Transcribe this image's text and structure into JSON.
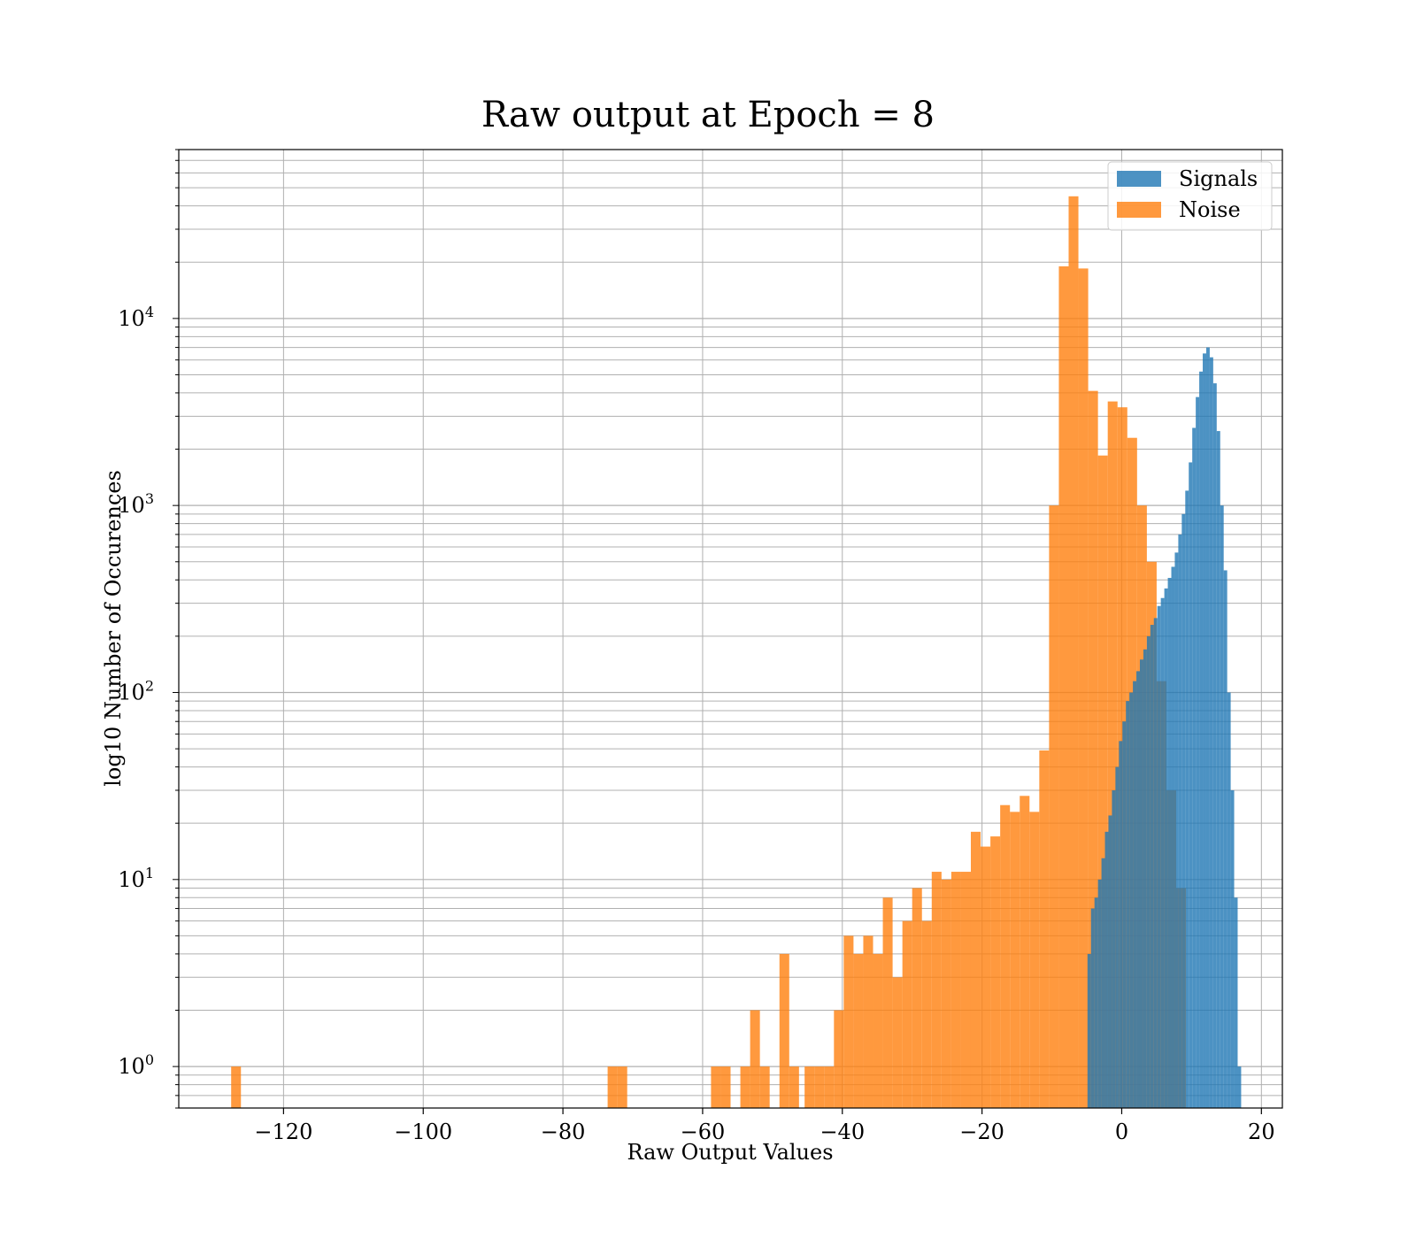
{
  "chart_data": {
    "type": "bar",
    "title": "Raw output at Epoch = 8",
    "xlabel": "Raw Output Values",
    "ylabel": "log10 Number of Occurences",
    "xlim": [
      -135,
      23
    ],
    "ylim": [
      0.6,
      80000
    ],
    "yscale": "log",
    "grid": true,
    "legend_position": "top-right",
    "x_ticks": [
      "−120",
      "−100",
      "−80",
      "−60",
      "−40",
      "−20",
      "0",
      "20"
    ],
    "x_tick_values": [
      -120,
      -100,
      -80,
      -60,
      -40,
      -20,
      0,
      20
    ],
    "y_ticks": [
      {
        "value": 1,
        "base": "10",
        "exp": "0"
      },
      {
        "value": 10,
        "base": "10",
        "exp": "1"
      },
      {
        "value": 100,
        "base": "10",
        "exp": "2"
      },
      {
        "value": 1000,
        "base": "10",
        "exp": "3"
      },
      {
        "value": 10000,
        "base": "10",
        "exp": "4"
      }
    ],
    "series": [
      {
        "name": "Noise",
        "color": "#ff7f0e",
        "bins": [
          [
            -127.5,
            -126.1,
            1
          ],
          [
            -73.6,
            -72.2,
            1
          ],
          [
            -72.2,
            -70.8,
            1
          ],
          [
            -58.8,
            -57.4,
            1
          ],
          [
            -57.4,
            -56.0,
            1
          ],
          [
            -54.6,
            -53.2,
            1
          ],
          [
            -53.2,
            -51.8,
            2
          ],
          [
            -51.8,
            -50.4,
            1
          ],
          [
            -49.0,
            -47.6,
            4
          ],
          [
            -47.6,
            -46.2,
            1
          ],
          [
            -45.4,
            -44.0,
            1
          ],
          [
            -44.0,
            -42.6,
            1
          ],
          [
            -42.6,
            -41.2,
            1
          ],
          [
            -41.2,
            -39.8,
            2
          ],
          [
            -39.8,
            -38.4,
            5
          ],
          [
            -38.4,
            -37.0,
            4
          ],
          [
            -37.0,
            -35.6,
            5
          ],
          [
            -35.6,
            -34.2,
            4
          ],
          [
            -34.2,
            -32.8,
            8
          ],
          [
            -32.8,
            -31.4,
            3
          ],
          [
            -31.4,
            -30.0,
            6
          ],
          [
            -30.0,
            -28.6,
            9
          ],
          [
            -28.6,
            -27.2,
            6
          ],
          [
            -27.2,
            -25.8,
            11
          ],
          [
            -25.8,
            -24.4,
            10
          ],
          [
            -24.4,
            -23.0,
            11
          ],
          [
            -23.0,
            -21.6,
            11
          ],
          [
            -21.6,
            -20.2,
            18
          ],
          [
            -20.2,
            -18.8,
            15
          ],
          [
            -18.8,
            -17.4,
            17
          ],
          [
            -17.4,
            -16.0,
            25
          ],
          [
            -16.0,
            -14.6,
            23
          ],
          [
            -14.6,
            -13.2,
            28
          ],
          [
            -13.2,
            -11.8,
            23
          ],
          [
            -11.8,
            -10.4,
            49
          ],
          [
            -10.4,
            -9.0,
            1000
          ],
          [
            -9.0,
            -7.6,
            19000
          ],
          [
            -7.6,
            -6.2,
            45000
          ],
          [
            -6.2,
            -4.8,
            18500
          ],
          [
            -4.8,
            -3.4,
            4100
          ],
          [
            -3.4,
            -2.0,
            1850
          ],
          [
            -2.0,
            -0.6,
            3600
          ],
          [
            -0.6,
            0.8,
            3350
          ],
          [
            0.8,
            2.2,
            2300
          ],
          [
            2.2,
            3.6,
            1000
          ],
          [
            3.6,
            5.0,
            500
          ],
          [
            5.0,
            6.4,
            115
          ],
          [
            6.4,
            7.8,
            30
          ],
          [
            7.8,
            9.2,
            9
          ]
        ]
      },
      {
        "name": "Signals",
        "color": "#1f77b4",
        "bins": [
          [
            -4.9,
            -4.4,
            4
          ],
          [
            -4.4,
            -3.9,
            7
          ],
          [
            -3.9,
            -3.4,
            8
          ],
          [
            -3.4,
            -2.9,
            10
          ],
          [
            -2.9,
            -2.4,
            13
          ],
          [
            -2.4,
            -1.9,
            18
          ],
          [
            -1.9,
            -1.4,
            22
          ],
          [
            -1.4,
            -0.9,
            30
          ],
          [
            -0.9,
            -0.4,
            40
          ],
          [
            -0.4,
            0.1,
            55
          ],
          [
            0.1,
            0.6,
            70
          ],
          [
            0.6,
            1.1,
            90
          ],
          [
            1.1,
            1.6,
            100
          ],
          [
            1.6,
            2.1,
            115
          ],
          [
            2.1,
            2.6,
            130
          ],
          [
            2.6,
            3.1,
            150
          ],
          [
            3.1,
            3.6,
            170
          ],
          [
            3.6,
            4.1,
            200
          ],
          [
            4.1,
            4.6,
            230
          ],
          [
            4.6,
            5.1,
            250
          ],
          [
            5.1,
            5.6,
            290
          ],
          [
            5.6,
            6.1,
            320
          ],
          [
            6.1,
            6.6,
            360
          ],
          [
            6.6,
            7.1,
            410
          ],
          [
            7.1,
            7.6,
            470
          ],
          [
            7.6,
            8.1,
            560
          ],
          [
            8.1,
            8.6,
            700
          ],
          [
            8.6,
            9.1,
            900
          ],
          [
            9.1,
            9.6,
            1200
          ],
          [
            9.6,
            10.1,
            1700
          ],
          [
            10.1,
            10.6,
            2600
          ],
          [
            10.6,
            11.1,
            3800
          ],
          [
            11.1,
            11.6,
            5200
          ],
          [
            11.6,
            12.1,
            6500
          ],
          [
            12.1,
            12.6,
            7000
          ],
          [
            12.6,
            13.1,
            6200
          ],
          [
            13.1,
            13.6,
            4500
          ],
          [
            13.6,
            14.1,
            2500
          ],
          [
            14.1,
            14.6,
            1000
          ],
          [
            14.6,
            15.1,
            450
          ],
          [
            15.1,
            15.6,
            100
          ],
          [
            15.6,
            16.1,
            30
          ],
          [
            16.1,
            16.6,
            8
          ],
          [
            16.6,
            17.1,
            1
          ]
        ]
      }
    ]
  }
}
